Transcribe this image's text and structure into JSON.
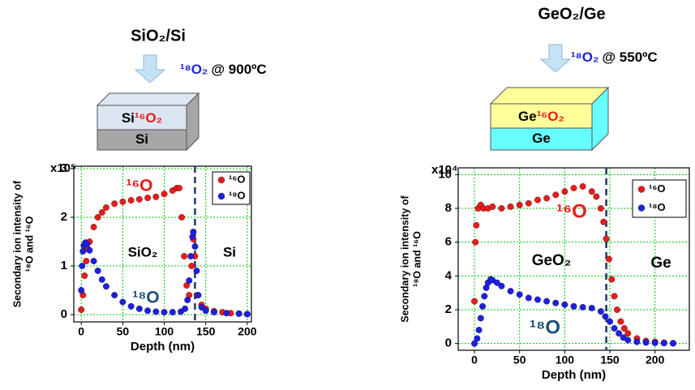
{
  "chart_data": [
    {
      "type": "scatter",
      "title": "SiO₂/Si",
      "gas": "¹⁸O₂",
      "condition": "@ 900ºC",
      "layers": {
        "top_base": "Si",
        "top_isotope": "¹⁶O₂",
        "bottom": "Si"
      },
      "xlabel": "Depth (nm)",
      "ylabel": [
        "Secondary ion intensity of",
        "¹⁸O and ¹⁶O"
      ],
      "y_scale_label": "x10⁵",
      "xlim": [
        -9,
        205
      ],
      "ylim": [
        -0.15,
        3.05
      ],
      "xticks": [
        0,
        50,
        100,
        150,
        200
      ],
      "yticks": [
        0,
        1,
        2,
        3
      ],
      "grid": true,
      "interface_x": 137,
      "annotations": [
        "¹⁶O",
        "¹⁸O",
        "SiO₂",
        "Si"
      ],
      "series": [
        {
          "name": "¹⁶O",
          "color": "#e81c1c",
          "x": [
            0,
            2,
            4,
            6,
            8,
            10,
            15,
            20,
            25,
            30,
            40,
            50,
            60,
            70,
            80,
            90,
            100,
            110,
            115,
            118,
            121,
            124,
            127,
            130,
            133,
            135,
            137,
            140,
            145,
            150,
            160,
            170,
            180,
            190,
            200
          ],
          "values": [
            0.1,
            0.4,
            0.8,
            1.1,
            1.35,
            1.5,
            1.8,
            2.0,
            2.1,
            2.2,
            2.28,
            2.32,
            2.35,
            2.37,
            2.4,
            2.42,
            2.48,
            2.55,
            2.6,
            2.6,
            2.0,
            1.2,
            0.6,
            0.4,
            1.0,
            1.55,
            1.2,
            0.4,
            0.2,
            0.12,
            0.07,
            0.05,
            0.03,
            0.02,
            0.01
          ]
        },
        {
          "name": "¹⁸O",
          "color": "#1f1fe0",
          "x": [
            0,
            1,
            2,
            3,
            5,
            7,
            10,
            15,
            20,
            25,
            30,
            40,
            50,
            60,
            70,
            80,
            90,
            100,
            110,
            120,
            125,
            128,
            130,
            132,
            134,
            135,
            137,
            139,
            141,
            145,
            150,
            160,
            175,
            190,
            200
          ],
          "values": [
            0.5,
            1.0,
            1.3,
            1.42,
            1.48,
            1.45,
            1.32,
            1.1,
            0.9,
            0.72,
            0.58,
            0.4,
            0.26,
            0.17,
            0.12,
            0.08,
            0.06,
            0.05,
            0.05,
            0.06,
            0.12,
            0.3,
            0.7,
            1.2,
            1.6,
            1.7,
            1.4,
            0.9,
            0.4,
            0.15,
            0.08,
            0.05,
            0.03,
            0.02,
            0.01
          ]
        }
      ]
    },
    {
      "type": "scatter",
      "title": "GeO₂/Ge",
      "gas": "¹⁸O₂",
      "condition": "@ 550ºC",
      "layers": {
        "top_base": "Ge",
        "top_isotope": "¹⁶O₂",
        "bottom": "Ge"
      },
      "xlabel": "Depth (nm)",
      "ylabel": [
        "Secondary ion intensity of",
        "¹⁸O and ¹⁶O"
      ],
      "y_scale_label": "x10⁴",
      "xlim": [
        -18,
        238
      ],
      "ylim": [
        -0.4,
        10.4
      ],
      "xticks": [
        0,
        50,
        100,
        150,
        200
      ],
      "yticks": [
        0,
        2,
        4,
        6,
        8,
        10
      ],
      "grid": true,
      "interface_x": 146,
      "annotations": [
        "¹⁶O",
        "¹⁸O",
        "GeO₂",
        "Ge"
      ],
      "series": [
        {
          "name": "¹⁶O",
          "color": "#e81c1c",
          "x": [
            0,
            1,
            2,
            4,
            7,
            10,
            15,
            20,
            30,
            40,
            50,
            60,
            70,
            80,
            90,
            100,
            110,
            120,
            130,
            135,
            140,
            143,
            146,
            149,
            152,
            155,
            158,
            162,
            166,
            170,
            180,
            190,
            200,
            210,
            220
          ],
          "values": [
            2.5,
            6.0,
            7.0,
            8.0,
            8.2,
            8.0,
            8.0,
            8.1,
            8.0,
            8.1,
            8.2,
            8.3,
            8.5,
            8.6,
            8.8,
            9.0,
            9.2,
            9.3,
            9.0,
            8.7,
            8.0,
            7.2,
            6.2,
            5.0,
            3.8,
            2.8,
            2.0,
            1.3,
            0.9,
            0.6,
            0.3,
            0.15,
            0.1,
            0.05,
            0.02
          ]
        },
        {
          "name": "¹⁸O",
          "color": "#1f1fe0",
          "x": [
            0,
            3,
            5,
            7,
            9,
            11,
            13,
            15,
            18,
            20,
            25,
            30,
            40,
            50,
            60,
            70,
            80,
            90,
            100,
            110,
            120,
            130,
            140,
            145,
            150,
            155,
            160,
            165,
            170,
            180,
            190,
            200,
            210,
            220
          ],
          "values": [
            0,
            0.3,
            0.8,
            1.5,
            2.2,
            2.8,
            3.3,
            3.6,
            3.8,
            3.75,
            3.6,
            3.4,
            3.1,
            2.9,
            2.7,
            2.6,
            2.5,
            2.4,
            2.3,
            2.2,
            2.15,
            2.1,
            1.9,
            1.6,
            1.3,
            0.9,
            0.6,
            0.35,
            0.2,
            0.1,
            0.06,
            0.04,
            0.02,
            0.01
          ]
        }
      ]
    }
  ]
}
